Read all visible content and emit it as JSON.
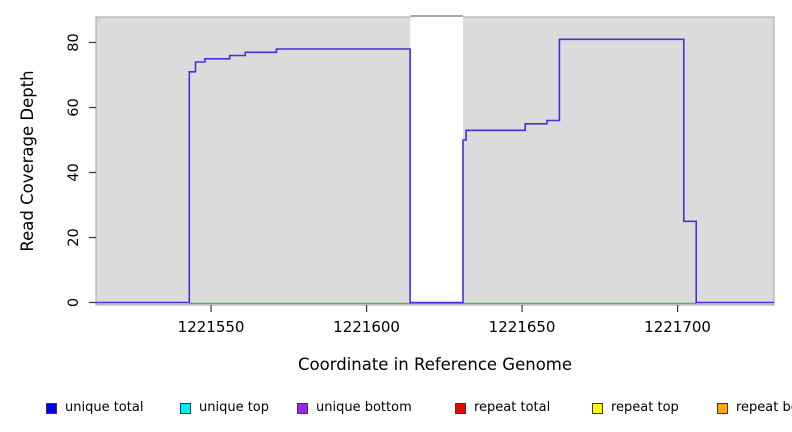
{
  "figure": {
    "panel_bg": "#DBDBDB",
    "panel_border": "#A3A3A3",
    "mask_fill": "#FFFFFF",
    "mask_border": "#8C8C8C",
    "tick_color": "#333333"
  },
  "chart_data": {
    "type": "line",
    "subtype": "step-coverage",
    "title": "",
    "xlabel": "Coordinate in Reference Genome",
    "ylabel": "Read Coverage Depth",
    "xlim": [
      1221513,
      1221731
    ],
    "ylim": [
      0,
      88
    ],
    "x_ticks": [
      "1221550",
      "1221600",
      "1221650",
      "1221700"
    ],
    "x_tick_values": [
      1221550,
      1221600,
      1221650,
      1221700
    ],
    "y_ticks": [
      "0",
      "20",
      "40",
      "60",
      "80"
    ],
    "y_tick_values": [
      0,
      20,
      40,
      60,
      80
    ],
    "grid": false,
    "legend_position": "bottom",
    "mask_region": {
      "x_start": 1221614,
      "x_end": 1221631
    },
    "baseline_series": {
      "name": "zero-baseline",
      "color": "#4CBB4C",
      "x_start": 1221543,
      "x_end": 1221706,
      "y": 0
    },
    "series": [
      {
        "name": "unique bottom coverage",
        "color": "#5329DF",
        "step_points": [
          [
            1221513,
            0
          ],
          [
            1221543,
            71
          ],
          [
            1221545,
            74
          ],
          [
            1221548,
            75
          ],
          [
            1221556,
            76
          ],
          [
            1221561,
            77
          ],
          [
            1221571,
            78
          ],
          [
            1221614,
            0
          ],
          [
            1221631,
            50
          ],
          [
            1221632,
            53
          ],
          [
            1221651,
            55
          ],
          [
            1221658,
            56
          ],
          [
            1221662,
            81
          ],
          [
            1221702,
            25
          ],
          [
            1221706,
            0
          ],
          [
            1221731,
            0
          ]
        ]
      }
    ]
  },
  "legend": {
    "items": [
      {
        "label": "unique total",
        "color": "#0000EE"
      },
      {
        "label": "unique top",
        "color": "#00EEEE"
      },
      {
        "label": "unique bottom",
        "color": "#A020F0"
      },
      {
        "label": "repeat total",
        "color": "#EE0000"
      },
      {
        "label": "repeat top",
        "color": "#FFFF00"
      },
      {
        "label": "repeat bottom",
        "color": "#FFA500"
      }
    ]
  }
}
